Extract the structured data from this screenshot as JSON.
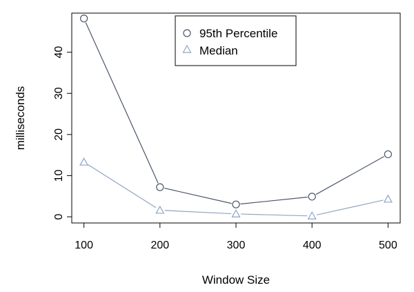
{
  "chart_data": {
    "type": "line",
    "title": "",
    "xlabel": "Window Size",
    "ylabel": "milliseconds",
    "x": [
      100,
      200,
      300,
      400,
      500
    ],
    "xlim": [
      84,
      516
    ],
    "ylim": [
      -1.5,
      49.5
    ],
    "xticks": [
      100,
      200,
      300,
      400,
      500
    ],
    "yticks": [
      0,
      10,
      20,
      30,
      40
    ],
    "grid": false,
    "legend_position": "top-center",
    "series": [
      {
        "name": "95th Percentile",
        "marker": "circle",
        "color": "#4a5468",
        "values": [
          48.2,
          7.2,
          3.0,
          4.9,
          15.2
        ]
      },
      {
        "name": "Median",
        "marker": "triangle",
        "color": "#8ea4c4",
        "values": [
          13.3,
          1.6,
          0.7,
          0.2,
          4.3
        ]
      }
    ]
  }
}
